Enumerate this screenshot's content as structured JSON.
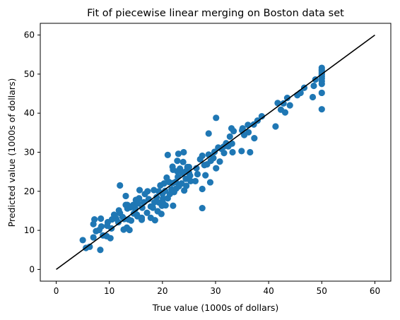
{
  "chart_data": {
    "type": "scatter",
    "title": "Fit of piecewise linear merging on Boston data set",
    "xlabel": "True value (1000s of dollars)",
    "ylabel": "Predicted value (1000s of dollars)",
    "xlim": [
      -3,
      63
    ],
    "ylim": [
      -3,
      63
    ],
    "xticks": [
      0,
      10,
      20,
      30,
      40,
      50,
      60
    ],
    "yticks": [
      0,
      10,
      20,
      30,
      40,
      50,
      60
    ],
    "grid": false,
    "legend": "none",
    "point_color": "#1f77b4",
    "line_color": "#000000",
    "reference_line": {
      "x": [
        0,
        60
      ],
      "y": [
        0,
        60
      ]
    },
    "series": [
      {
        "x": [
          5.0,
          5.6,
          6.3,
          7.0,
          7.2,
          7.5,
          8.3,
          8.4,
          8.5,
          8.8,
          9.5,
          9.6,
          10.2,
          10.4,
          10.5,
          10.9,
          11.3,
          11.7,
          11.8,
          12.0,
          12.5,
          12.7,
          12.8,
          13.1,
          13.3,
          13.4,
          13.6,
          13.8,
          14.1,
          14.3,
          14.5,
          14.6,
          14.9,
          15.0,
          15.2,
          15.4,
          15.6,
          16.1,
          16.2,
          16.5,
          16.7,
          17.1,
          17.4,
          17.8,
          18.2,
          18.4,
          18.5,
          18.9,
          19.1,
          19.3,
          19.4,
          19.6,
          19.9,
          20.0,
          20.1,
          20.3,
          20.5,
          20.6,
          20.8,
          21.0,
          21.2,
          21.4,
          21.7,
          21.9,
          22.0,
          22.2,
          22.5,
          22.6,
          22.8,
          22.9,
          23.1,
          23.3,
          23.6,
          23.8,
          23.9,
          24.1,
          24.3,
          24.4,
          24.7,
          25.0,
          25.2,
          25.3,
          25.0,
          26.4,
          26.6,
          27.1,
          27.5,
          27.9,
          28.1,
          28.4,
          28.7,
          29.1,
          29.6,
          29.8,
          30.1,
          30.5,
          30.8,
          31.1,
          31.5,
          31.6,
          32.0,
          32.4,
          32.7,
          33.1,
          33.2,
          33.4,
          34.9,
          35.1,
          35.4,
          36.1,
          36.2,
          37.2,
          37.3,
          37.9,
          38.7,
          41.3,
          41.7,
          42.3,
          42.8,
          43.1,
          43.5,
          44.0,
          45.4,
          46.0,
          46.7,
          48.3,
          48.5,
          48.8,
          50.0,
          50.0,
          50.0,
          50.0,
          50.0,
          50.0,
          50.0,
          50.0,
          50.0,
          50.0,
          50.0,
          23.0,
          27.5,
          22.0,
          21.9,
          12.0,
          16.1,
          13.4,
          19.8,
          28.7,
          13.1,
          17.8,
          29.0,
          22.8,
          7.0,
          8.1,
          14.0,
          15.3,
          20.1,
          24.5,
          27.5,
          30.1,
          33.0,
          35.0,
          36.5,
          26.2,
          21.0,
          17.2,
          18.6,
          11.0,
          9.7,
          15.7,
          24.0
        ],
        "y": [
          7.5,
          5.5,
          5.8,
          8.2,
          12.8,
          9.8,
          5.0,
          13.0,
          11.0,
          8.7,
          8.5,
          11.2,
          8.0,
          10.5,
          12.8,
          14.0,
          13.0,
          12.1,
          15.1,
          14.4,
          13.4,
          10.2,
          12.9,
          16.5,
          10.7,
          15.6,
          12.8,
          10.1,
          12.5,
          16.2,
          16.5,
          14.3,
          15.5,
          17.8,
          14.0,
          16.9,
          18.2,
          13.2,
          15.8,
          17.2,
          19.3,
          14.5,
          18.0,
          16.1,
          15.8,
          20.3,
          17.2,
          18.5,
          14.9,
          20.0,
          17.1,
          21.5,
          16.3,
          19.4,
          18.2,
          22.0,
          20.1,
          16.4,
          23.5,
          18.2,
          22.4,
          19.3,
          20.5,
          22.1,
          25.5,
          19.8,
          22.4,
          20.7,
          25.1,
          23.7,
          21.3,
          25.8,
          22.0,
          24.6,
          27.5,
          20.2,
          25.0,
          23.2,
          26.2,
          24.7,
          24.0,
          22.6,
          26.2,
          25.9,
          24.4,
          28.2,
          29.1,
          26.7,
          24.1,
          26.9,
          29.4,
          27.8,
          28.5,
          30.1,
          25.9,
          31.2,
          27.6,
          30.9,
          31.4,
          29.8,
          32.3,
          31.5,
          34.0,
          32.2,
          30.0,
          35.4,
          30.3,
          36.1,
          34.4,
          37.0,
          35.1,
          37.1,
          33.6,
          38.1,
          39.2,
          36.6,
          42.6,
          40.9,
          42.5,
          40.2,
          43.9,
          42.0,
          44.6,
          45.2,
          46.5,
          44.1,
          47.0,
          48.6,
          41.0,
          45.2,
          47.5,
          48.2,
          48.9,
          49.4,
          49.9,
          50.3,
          50.8,
          51.1,
          51.6,
          29.6,
          15.7,
          16.3,
          26.3,
          21.5,
          12.7,
          16.5,
          14.2,
          34.8,
          18.8,
          13.2,
          22.3,
          27.8,
          11.6,
          10.1,
          15.9,
          13.6,
          17.0,
          21.4,
          20.6,
          38.8,
          36.1,
          35.6,
          30.0,
          22.6,
          29.3,
          20.0,
          12.6,
          13.8,
          12.1,
          20.3,
          30.0
        ]
      }
    ]
  }
}
